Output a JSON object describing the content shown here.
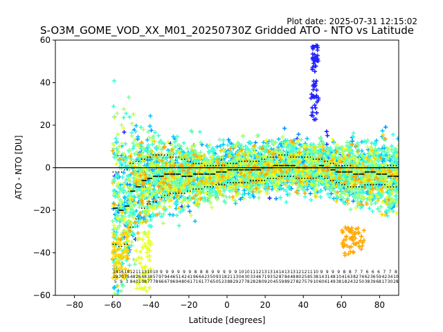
{
  "chart_data": {
    "type": "scatter",
    "title": "S-O3M_GOME_VOD_XX_M01_20250730Z Gridded ATO - NTO vs Latitude",
    "plot_date": "Plot date: 2025-07-31 12:15:02",
    "xlabel": "Latitude [degrees]",
    "ylabel": "ATO - NTO [DU]",
    "xlim": [
      -90,
      90
    ],
    "ylim": [
      -60,
      60
    ],
    "xticks": [
      -80,
      -60,
      -40,
      -20,
      0,
      20,
      40,
      60,
      80
    ],
    "yticks": [
      -60,
      -40,
      -20,
      0,
      20,
      40,
      60
    ],
    "xtick_labels": [
      "−80",
      "−60",
      "−40",
      "−20",
      "0",
      "20",
      "40",
      "60",
      "80"
    ],
    "ytick_labels": [
      "−60",
      "−40",
      "−20",
      "0",
      "20",
      "40",
      "60"
    ],
    "grid": false,
    "reference_line_y": 0,
    "marker": "+",
    "colors": [
      "#1f1fff",
      "#0096ff",
      "#00c8ff",
      "#3cffd6",
      "#7cffa0",
      "#b8ff5a",
      "#e8ff2a",
      "#ffd400",
      "#ffa800"
    ],
    "bins_lat": [
      -60,
      -57,
      -54,
      -51,
      -48,
      -45,
      -42,
      -39,
      -36,
      -33,
      -30,
      -27,
      -24,
      -21,
      -18,
      -15,
      -12,
      -9,
      -6,
      -3,
      0,
      3,
      6,
      9,
      12,
      15,
      18,
      21,
      24,
      27,
      30,
      33,
      36,
      39,
      42,
      45,
      48,
      51,
      54,
      57,
      60,
      63,
      66,
      69,
      72,
      75,
      78,
      81,
      84,
      87
    ],
    "bins_median": [
      -19,
      -20,
      -18,
      -11,
      -9,
      -6,
      -5,
      -4,
      -4,
      -3,
      -3,
      -3,
      -4,
      -4,
      -3,
      -3,
      -3,
      -3,
      -2,
      -2,
      -1,
      -1,
      -1,
      -1,
      -1,
      -1,
      0,
      0,
      1,
      1,
      1,
      1,
      0,
      0,
      0,
      0,
      1,
      0,
      -1,
      -2,
      -2,
      -2,
      -3,
      -3,
      -2,
      -2,
      -3,
      -3,
      -4,
      -4
    ],
    "bins_upper": [
      -2,
      -2,
      -1,
      2,
      3,
      4,
      5,
      6,
      6,
      6,
      5,
      5,
      4,
      3,
      2,
      2,
      1,
      1,
      1,
      1,
      2,
      2,
      3,
      3,
      3,
      3,
      4,
      5,
      5,
      6,
      6,
      5,
      5,
      5,
      5,
      4,
      4,
      3,
      2,
      1,
      1,
      1,
      0,
      0,
      0,
      0,
      0,
      0,
      1,
      1
    ],
    "bins_lower": [
      -36,
      -37,
      -36,
      -28,
      -24,
      -19,
      -17,
      -16,
      -14,
      -13,
      -12,
      -12,
      -12,
      -11,
      -10,
      -10,
      -9,
      -9,
      -8,
      -8,
      -7,
      -7,
      -7,
      -7,
      -6,
      -6,
      -6,
      -5,
      -5,
      -4,
      -4,
      -4,
      -5,
      -5,
      -5,
      -5,
      -4,
      -5,
      -6,
      -7,
      -8,
      -9,
      -9,
      -9,
      -8,
      -8,
      -8,
      -8,
      -9,
      -9
    ],
    "bins_spread": [
      24,
      23,
      21,
      15,
      13,
      11,
      10,
      9,
      9,
      8,
      8,
      8,
      8,
      7,
      7,
      7,
      6,
      6,
      6,
      6,
      6,
      6,
      6,
      6,
      6,
      6,
      6,
      6,
      6,
      6,
      6,
      6,
      6,
      6,
      6,
      6,
      6,
      6,
      6,
      6,
      7,
      7,
      7,
      7,
      7,
      8,
      8,
      8,
      8,
      8
    ],
    "outlier_clusters": [
      {
        "x": [
          44,
          48
        ],
        "y": [
          22,
          58
        ],
        "color": "#1f1fff"
      },
      {
        "x": [
          -48,
          -40
        ],
        "y": [
          -58,
          -30
        ],
        "color": "#e8ff2a"
      },
      {
        "x": [
          -60,
          -52
        ],
        "y": [
          -52,
          -30
        ],
        "color": "#ffd400"
      },
      {
        "x": [
          60,
          72
        ],
        "y": [
          -42,
          -28
        ],
        "color": "#ffa800"
      }
    ],
    "bin_stats_row1": [
      "14",
      "16",
      "18",
      "12",
      "11",
      "13",
      "10",
      "10",
      "9",
      "9",
      "9",
      "9",
      "9",
      "9",
      "8",
      "8",
      "8",
      "9",
      "9",
      "9",
      "9",
      "9",
      "10",
      "10",
      "11",
      "12",
      "13",
      "13",
      "14",
      "14",
      "13",
      "13",
      "12",
      "12",
      "11",
      "10",
      "9",
      "9",
      "9",
      "9",
      "8",
      "8",
      "7",
      "7",
      "6",
      "6",
      "6",
      "7",
      "7",
      "8"
    ],
    "bin_stats_row2": [
      "19",
      "70",
      "75",
      "48",
      "26",
      "48",
      "38",
      "57",
      "97",
      "94",
      "46",
      "51",
      "42",
      "41",
      "96",
      "64",
      "23",
      "50",
      "93",
      "18",
      "21",
      "13",
      "04",
      "30",
      "33",
      "46",
      "71",
      "93",
      "52",
      "87",
      "84",
      "48",
      "80",
      "25",
      "85",
      "38",
      "14",
      "31",
      "48",
      "10",
      "41",
      "63",
      "82",
      "74",
      "62",
      "36",
      "59",
      "42",
      "34",
      "10"
    ],
    "bin_stats_row3": [
      "5",
      "9",
      "3",
      "84",
      "01",
      "08",
      "77",
      "78",
      "66",
      "67",
      "96",
      "94",
      "80",
      "61",
      "71",
      "61",
      "77",
      "65",
      "05",
      "23",
      "88",
      "29",
      "27",
      "78",
      "28",
      "28",
      "09",
      "20",
      "45",
      "59",
      "89",
      "27",
      "82",
      "75",
      "79",
      "10",
      "60",
      "61",
      "49",
      "38",
      "18",
      "24",
      "32",
      "50",
      "38",
      "39",
      "68",
      "17",
      "30",
      "28"
    ]
  }
}
